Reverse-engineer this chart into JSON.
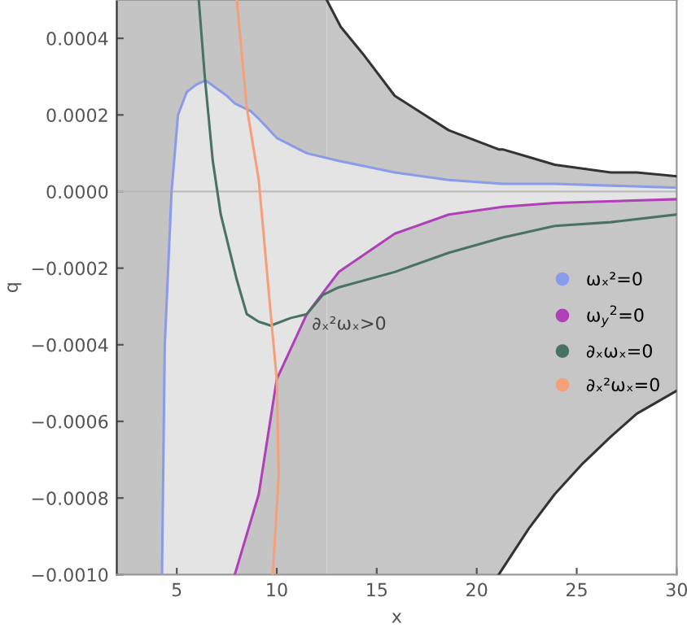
{
  "chart_data": {
    "type": "line",
    "xlabel": "x",
    "ylabel": "q",
    "xlim": [
      2,
      30
    ],
    "ylim": [
      -0.001,
      0.0005
    ],
    "xticks": [
      5,
      10,
      15,
      20,
      25,
      30
    ],
    "yticks": [
      {
        "value": -0.001,
        "label": "−0.0010"
      },
      {
        "value": -0.0008,
        "label": "−0.0008"
      },
      {
        "value": -0.0006,
        "label": "−0.0006"
      },
      {
        "value": -0.0004,
        "label": "−0.0004"
      },
      {
        "value": -0.0002,
        "label": "−0.0002"
      },
      {
        "value": 0,
        "label": "0.0000"
      },
      {
        "value": 0.0002,
        "label": "0.0002"
      },
      {
        "value": 0.0004,
        "label": "0.0004"
      }
    ],
    "legend": "right",
    "grid": false,
    "ref_lines": [
      {
        "axis": "y",
        "value": 0,
        "color": "#bbbbbb"
      }
    ],
    "bands": [
      {
        "axis": "x",
        "from": 2,
        "to": 12.5,
        "color": "#c4c4c4"
      }
    ],
    "annotations": [
      "∂ₓ²ωₓ>0"
    ],
    "series": [
      {
        "color": "#333333",
        "x": [
          12.5,
          13.2,
          14.3,
          15.9,
          18.6,
          21.1,
          21.3,
          22.6,
          23.9,
          25.3,
          26.7,
          28,
          30
        ],
        "values": [
          0.0005,
          0.00043,
          0.00036,
          0.00025,
          0.00016,
          0.00011,
          0.00011,
          9e-05,
          7e-05,
          6e-05,
          5e-05,
          5e-05,
          4e-05
        ],
        "upper": [
          0.0005,
          0.00043,
          0.00036,
          0.00025,
          0.00016,
          0.00011,
          0.00011,
          9e-05,
          7e-05,
          6e-05,
          5e-05,
          5e-05,
          4e-05
        ],
        "lower": [
          -0.001,
          -0.001,
          -0.001,
          -0.001,
          -0.001,
          -0.001,
          -0.00099,
          -0.00088,
          -0.00079,
          -0.00071,
          -0.00064,
          -0.00058,
          -0.00052
        ]
      },
      {
        "color": "#333333",
        "x": [
          21.1,
          22.6,
          23.9,
          25.3,
          26.7,
          28,
          30
        ],
        "values": [
          -0.001,
          -0.00088,
          -0.00079,
          -0.00071,
          -0.00064,
          -0.00058,
          -0.00052
        ]
      },
      {
        "name": "ωₓ²=0",
        "color": "#8a9bea",
        "x": [
          4.26,
          4.4,
          4.74,
          5.06,
          5.5,
          6.0,
          6.44,
          7.5,
          7.9,
          8.7,
          9.1,
          10,
          11.5,
          13.1,
          15.9,
          18.6,
          21.3,
          23.9,
          30
        ],
        "values": [
          -0.001,
          -0.0004,
          0,
          0.0002,
          0.00026,
          0.00028,
          0.00029,
          0.00025,
          0.00023,
          0.00021,
          0.00019,
          0.00014,
          0.0001,
          8e-05,
          5e-05,
          3e-05,
          2e-05,
          2e-05,
          1e-05
        ],
        "upper": [
          -0.001,
          -0.0004,
          0,
          0.0002,
          0.00026,
          0.00028,
          0.00029,
          0.00025,
          0.00023,
          0.00021,
          0.00019,
          0.00014,
          0.0001,
          8e-05,
          5e-05,
          3e-05,
          2e-05,
          2e-05,
          1e-05
        ],
        "lower": [
          -0.001,
          -0.001,
          -0.001,
          -0.001,
          -0.001,
          -0.001,
          -0.001,
          -0.001,
          -0.001,
          -0.00086,
          -0.00079,
          -0.00049,
          -0.00032,
          -0.00021,
          -0.00011,
          -6e-05,
          -4e-05,
          -3e-05,
          -2e-05
        ]
      },
      {
        "name": "ω$_{y}$$^{2}$=0",
        "color": "#b040b8",
        "x": [
          7.9,
          9.1,
          10,
          11.5,
          13.1,
          15.9,
          18.6,
          21.3,
          23.9,
          30
        ],
        "values": [
          -0.001,
          -0.00079,
          -0.00049,
          -0.00032,
          -0.00021,
          -0.00011,
          -6e-05,
          -4e-05,
          -3e-05,
          -2e-05
        ]
      },
      {
        "name": "∂ₓωₓ=0",
        "color": "#4a7262",
        "x": [
          6.1,
          6.4,
          6.8,
          7.2,
          8.0,
          8.5,
          9.1,
          9.7,
          10.7,
          11.5,
          12.3,
          13.1,
          15.9,
          18.6,
          21.3,
          23.9,
          26.7,
          30
        ],
        "values": [
          0.0005,
          0.0003,
          8e-05,
          -6e-05,
          -0.00023,
          -0.00032,
          -0.00034,
          -0.00035,
          -0.00033,
          -0.00032,
          -0.00027,
          -0.00025,
          -0.00021,
          -0.00016,
          -0.00012,
          -9e-05,
          -8e-05,
          -6e-05
        ]
      },
      {
        "name": "∂ₓ²ωₓ=0",
        "color": "#f5a07a",
        "x": [
          8.0,
          8.5,
          9.1,
          9.7,
          10.0,
          10.1,
          9.8
        ],
        "values": [
          0.0005,
          0.00022,
          3e-05,
          -0.00032,
          -0.00049,
          -0.00074,
          -0.001
        ]
      }
    ]
  }
}
